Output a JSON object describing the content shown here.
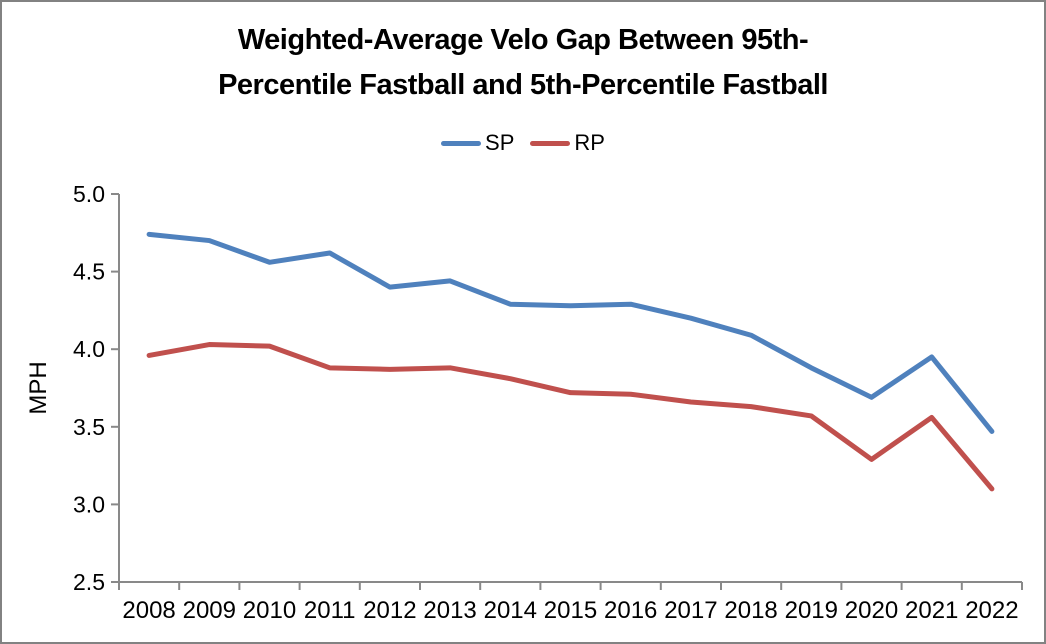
{
  "frame": {
    "background": "#FFFFFF",
    "border_color": "#828282"
  },
  "chart_data": {
    "type": "line",
    "title": "Weighted-Average Velo Gap Between 95th-Percentile Fastball and 5th-Percentile Fastball",
    "title_lines": [
      "Weighted-Average Velo Gap Between 95th-",
      "Percentile Fastball and 5th-Percentile Fastball"
    ],
    "ylabel": "MPH",
    "xlabel": "",
    "categories": [
      "2008",
      "2009",
      "2010",
      "2011",
      "2012",
      "2013",
      "2014",
      "2015",
      "2016",
      "2017",
      "2018",
      "2019",
      "2020",
      "2021",
      "2022"
    ],
    "series": [
      {
        "name": "SP",
        "color": "#4F81BD",
        "values": [
          4.74,
          4.7,
          4.56,
          4.62,
          4.4,
          4.44,
          4.29,
          4.28,
          4.29,
          4.2,
          4.09,
          3.88,
          3.69,
          3.95,
          3.47
        ]
      },
      {
        "name": "RP",
        "color": "#C0504D",
        "values": [
          3.96,
          4.03,
          4.02,
          3.88,
          3.87,
          3.88,
          3.81,
          3.72,
          3.71,
          3.66,
          3.63,
          3.57,
          3.29,
          3.56,
          3.1
        ]
      }
    ],
    "ylim": [
      2.5,
      5.0
    ],
    "ytick_step": 0.5,
    "ytick_labels": [
      "5.0",
      "4.5",
      "4.0",
      "3.5",
      "3.0",
      "2.5"
    ],
    "grid": false,
    "legend_position": "top-center",
    "axis_color": "#898989",
    "text_color": "#000000"
  }
}
